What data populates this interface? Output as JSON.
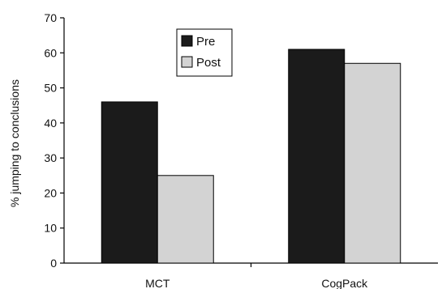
{
  "chart_data": {
    "type": "bar",
    "title": "",
    "xlabel": "",
    "ylabel": "% jumping to conclusions",
    "categories": [
      "MCT",
      "CogPack"
    ],
    "series": [
      {
        "name": "Pre",
        "values": [
          46,
          61
        ],
        "color": "#1b1b1b"
      },
      {
        "name": "Post",
        "values": [
          25,
          57
        ],
        "color": "#d3d3d3"
      }
    ],
    "ylim": [
      0,
      70
    ],
    "yticks": [
      0,
      10,
      20,
      30,
      40,
      50,
      60,
      70
    ],
    "grid": false,
    "legend_position": "top-center"
  }
}
